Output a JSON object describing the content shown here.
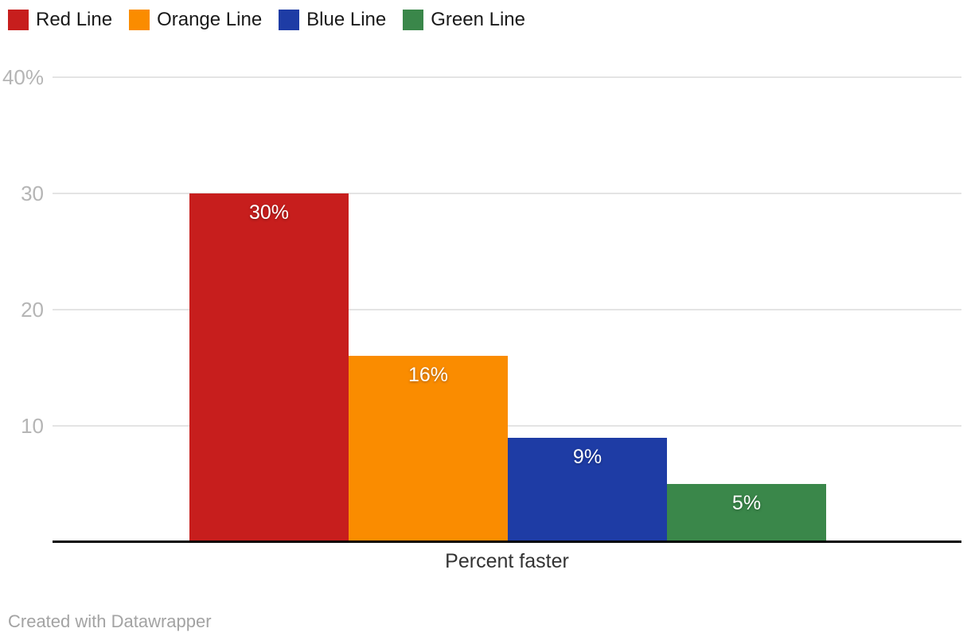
{
  "legend": {
    "items": [
      {
        "label": "Red Line",
        "color": "#c71e1d"
      },
      {
        "label": "Orange Line",
        "color": "#fa8c00"
      },
      {
        "label": "Blue Line",
        "color": "#1e3ca5"
      },
      {
        "label": "Green Line",
        "color": "#3a874a"
      }
    ]
  },
  "chart_data": {
    "type": "bar",
    "categories": [
      "Red Line",
      "Orange Line",
      "Blue Line",
      "Green Line"
    ],
    "values": [
      30,
      16,
      9,
      5
    ],
    "bar_labels": [
      "30%",
      "16%",
      "9%",
      "5%"
    ],
    "series_colors": [
      "#c71e1d",
      "#fa8c00",
      "#1e3ca5",
      "#3a874a"
    ],
    "title": "",
    "xlabel": "Percent faster",
    "ylabel": "",
    "ylim": [
      0,
      40
    ],
    "y_ticks": [
      {
        "value": 40,
        "label": "40%"
      },
      {
        "value": 30,
        "label": "30"
      },
      {
        "value": 20,
        "label": "20"
      },
      {
        "value": 10,
        "label": "10"
      }
    ],
    "grid": true,
    "legend_position": "top-left"
  },
  "footer": {
    "credit": "Created with Datawrapper"
  }
}
